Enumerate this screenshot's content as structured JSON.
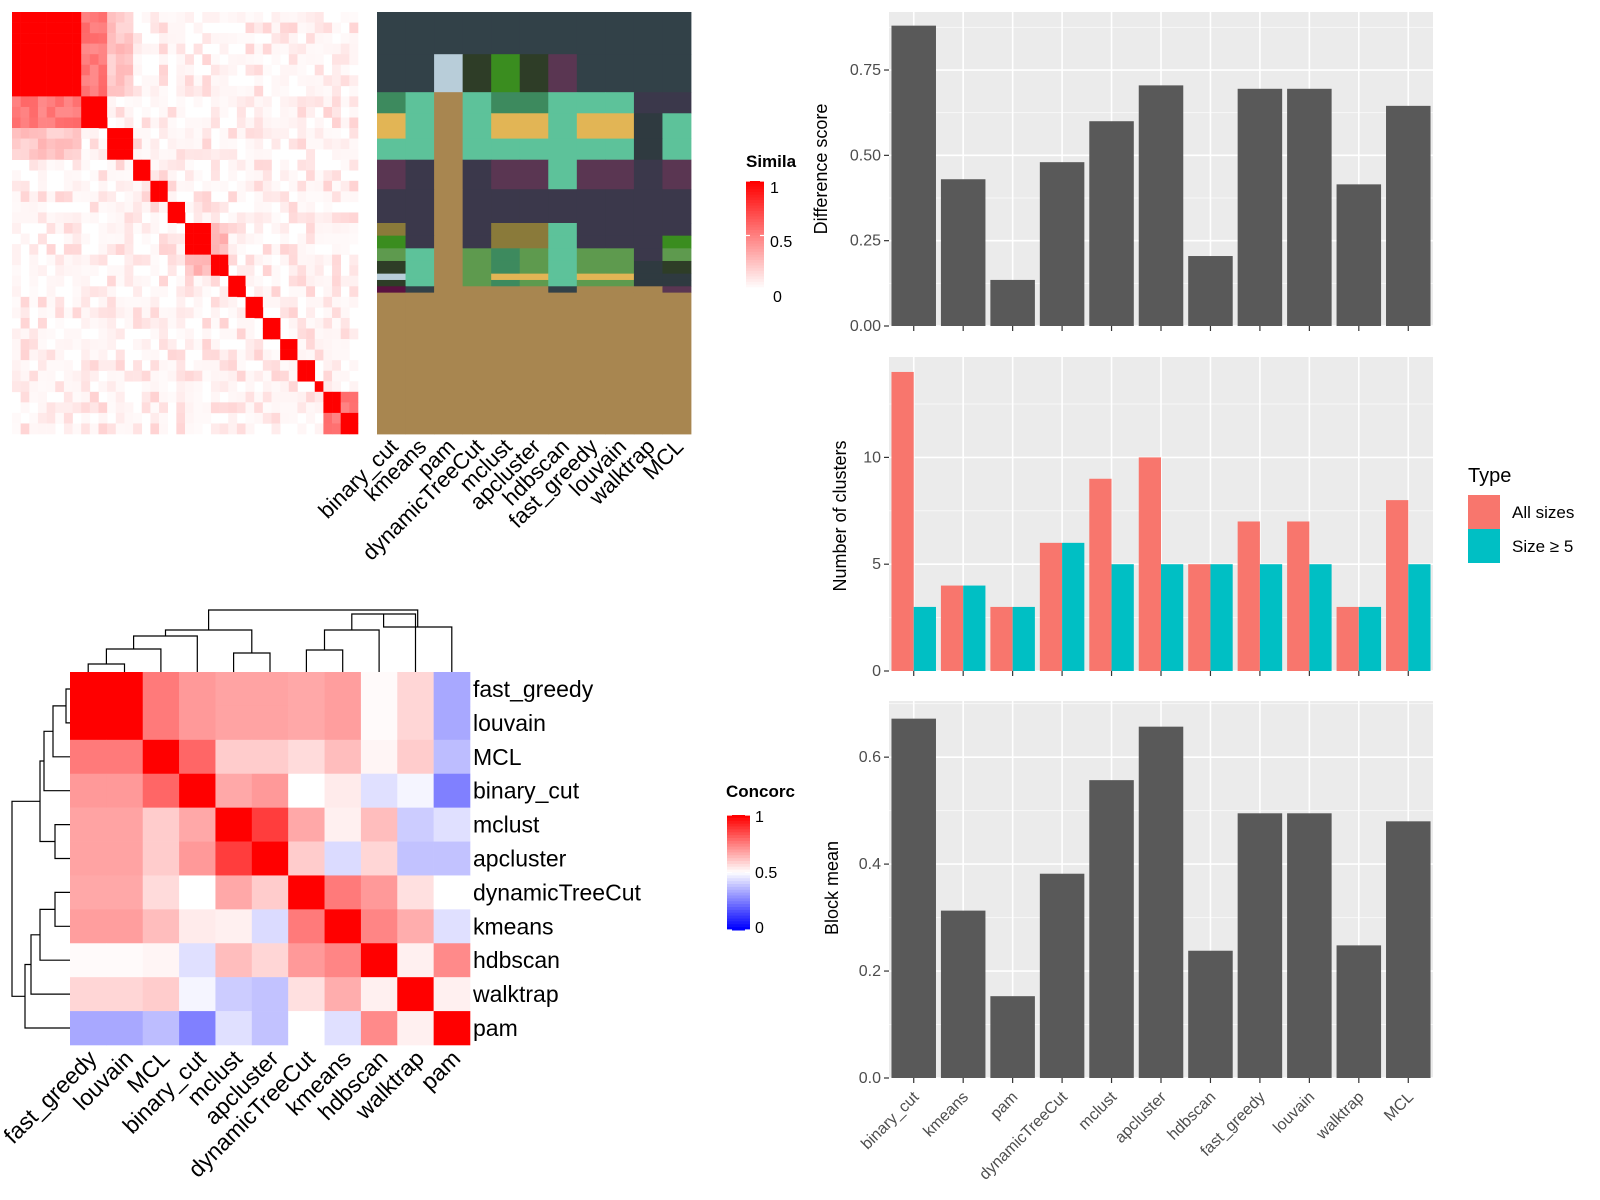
{
  "chart_data": [
    {
      "type": "heatmap",
      "panel": "similarity-heatmap",
      "legend_title": "Simila",
      "legend_ticks": [
        "1",
        "0.5",
        "0"
      ],
      "color_scale": {
        "low": "#ffffff",
        "high": "#ff0000",
        "range": [
          0,
          1
        ]
      },
      "diag_blocks": [
        8,
        3,
        3,
        2,
        2,
        2,
        3,
        2,
        2,
        2,
        2,
        2,
        2,
        1,
        2,
        2,
        2
      ],
      "block_links": [
        [
          0,
          1,
          0.45
        ],
        [
          0,
          2,
          0.15
        ],
        [
          6,
          7,
          0.2
        ],
        [
          14,
          15,
          0.45
        ],
        [
          15,
          16,
          0.4
        ]
      ]
    },
    {
      "type": "heatmap",
      "panel": "cluster-assignment-heatmap",
      "categories": [
        "binary_cut",
        "kmeans",
        "pam",
        "dynamicTreeCut",
        "mclust",
        "apcluster",
        "hdbscan",
        "fast_greedy",
        "louvain",
        "walktrap",
        "MCL"
      ],
      "background_color": "#324148",
      "rows": [
        {
          "h": 10,
          "cells": [
            "#324148",
            "#324148",
            "#324148",
            "#324148",
            "#324148",
            "#324148",
            "#324148",
            "#324148",
            "#324148",
            "#324148",
            "#324148"
          ]
        },
        {
          "h": 9,
          "cells": [
            "#324148",
            "#324148",
            "#b8cdd9",
            "#2e3d27",
            "#3a8d1f",
            "#2e3d27",
            "#5a3652",
            "#324148",
            "#324148",
            "#324148",
            "#324148"
          ]
        },
        {
          "h": 5,
          "cells": [
            "#3d8a5e",
            "#5dc29a",
            "#a88650",
            "#5dc29a",
            "#3d8a5e",
            "#3d8a5e",
            "#5dc29a",
            "#5dc29a",
            "#5dc29a",
            "#3b384b",
            "#3b384b"
          ]
        },
        {
          "h": 6,
          "cells": [
            "#e2b555",
            "#5dc29a",
            "#a88650",
            "#5dc29a",
            "#e2b555",
            "#e2b555",
            "#5dc29a",
            "#e2b555",
            "#e2b555",
            "#2f3a40",
            "#5dc29a"
          ]
        },
        {
          "h": 5,
          "cells": [
            "#5dc29a",
            "#5dc29a",
            "#a88650",
            "#5dc29a",
            "#5dc29a",
            "#5dc29a",
            "#5dc29a",
            "#5dc29a",
            "#5dc29a",
            "#2f3a40",
            "#5dc29a"
          ]
        },
        {
          "h": 7,
          "cells": [
            "#5a3652",
            "#3b384b",
            "#a88650",
            "#3b384b",
            "#5a3652",
            "#5a3652",
            "#5dc29a",
            "#5a3652",
            "#5a3652",
            "#3b384b",
            "#5a3652"
          ]
        },
        {
          "h": 8,
          "cells": [
            "#3b384b",
            "#3b384b",
            "#a88650",
            "#3b384b",
            "#3b384b",
            "#3b384b",
            "#3b384b",
            "#3b384b",
            "#3b384b",
            "#3b384b",
            "#3b384b"
          ]
        },
        {
          "h": 3,
          "cells": [
            "#8a7a3a",
            "#3b384b",
            "#a88650",
            "#3b384b",
            "#8a7a3a",
            "#8a7a3a",
            "#5dc29a",
            "#3b384b",
            "#3b384b",
            "#3b384b",
            "#3b384b"
          ]
        },
        {
          "h": 3,
          "cells": [
            "#3a8d1f",
            "#3b384b",
            "#a88650",
            "#3b384b",
            "#8a7a3a",
            "#8a7a3a",
            "#5dc29a",
            "#3b384b",
            "#3b384b",
            "#3b384b",
            "#3a8d1f"
          ]
        },
        {
          "h": 3,
          "cells": [
            "#5e9a4e",
            "#5dc29a",
            "#a88650",
            "#5e9a4e",
            "#3d8a5e",
            "#5e9a4e",
            "#5dc29a",
            "#5e9a4e",
            "#5e9a4e",
            "#3b384b",
            "#5e9a4e"
          ]
        },
        {
          "h": 3,
          "cells": [
            "#2e3d27",
            "#5dc29a",
            "#a88650",
            "#5e9a4e",
            "#3d8a5e",
            "#5e9a4e",
            "#5dc29a",
            "#5e9a4e",
            "#5e9a4e",
            "#2f3a40",
            "#2e3d27"
          ]
        },
        {
          "h": 1.5,
          "cells": [
            "#b8cdd9",
            "#5dc29a",
            "#a88650",
            "#5e9a4e",
            "#e2b555",
            "#e2b555",
            "#5dc29a",
            "#e2b555",
            "#e2b555",
            "#2f3a40",
            "#2f3a40"
          ]
        },
        {
          "h": 1.5,
          "cells": [
            "#2e3d27",
            "#5dc29a",
            "#a88650",
            "#5e9a4e",
            "#3d8a5e",
            "#5e9a4e",
            "#5dc29a",
            "#5e9a4e",
            "#5e9a4e",
            "#2f3a40",
            "#2f3a40"
          ]
        },
        {
          "h": 1.5,
          "cells": [
            "#5a1240",
            "#324148",
            "#a88650",
            "#a88650",
            "#a88650",
            "#a88650",
            "#324148",
            "#a88650",
            "#a88650",
            "#a88650",
            "#5a3652"
          ]
        },
        {
          "h": 33.5,
          "cells": [
            "#a88650",
            "#a88650",
            "#a88650",
            "#a88650",
            "#a88650",
            "#a88650",
            "#a88650",
            "#a88650",
            "#a88650",
            "#a88650",
            "#a88650"
          ]
        }
      ]
    },
    {
      "type": "heatmap",
      "panel": "concordance-heatmap",
      "legend_title": "Concorc",
      "legend_ticks": [
        "1",
        "0.5",
        "0"
      ],
      "color_scale": {
        "low": "#0000ff",
        "mid": "#ffffff",
        "high": "#ff0000",
        "range": [
          0,
          1
        ]
      },
      "rows": [
        "fast_greedy",
        "louvain",
        "MCL",
        "binary_cut",
        "mclust",
        "apcluster",
        "dynamicTreeCut",
        "kmeans",
        "hdbscan",
        "walktrap",
        "pam"
      ],
      "columns": [
        "fast_greedy",
        "louvain",
        "MCL",
        "binary_cut",
        "mclust",
        "apcluster",
        "dynamicTreeCut",
        "kmeans",
        "hdbscan",
        "walktrap",
        "pam"
      ],
      "values": [
        [
          1.0,
          1.0,
          0.76,
          0.7,
          0.68,
          0.68,
          0.67,
          0.69,
          0.51,
          0.58,
          0.33
        ],
        [
          1.0,
          1.0,
          0.76,
          0.7,
          0.68,
          0.68,
          0.67,
          0.69,
          0.51,
          0.58,
          0.33
        ],
        [
          0.76,
          0.76,
          1.0,
          0.8,
          0.6,
          0.6,
          0.57,
          0.63,
          0.52,
          0.6,
          0.37
        ],
        [
          0.7,
          0.7,
          0.8,
          1.0,
          0.67,
          0.7,
          0.5,
          0.54,
          0.44,
          0.48,
          0.25
        ],
        [
          0.68,
          0.68,
          0.6,
          0.67,
          1.0,
          0.88,
          0.67,
          0.53,
          0.63,
          0.4,
          0.44
        ],
        [
          0.68,
          0.68,
          0.6,
          0.7,
          0.88,
          1.0,
          0.6,
          0.43,
          0.58,
          0.38,
          0.38
        ],
        [
          0.67,
          0.67,
          0.57,
          0.5,
          0.67,
          0.6,
          1.0,
          0.76,
          0.7,
          0.56,
          0.5
        ],
        [
          0.69,
          0.69,
          0.63,
          0.54,
          0.53,
          0.43,
          0.76,
          1.0,
          0.74,
          0.66,
          0.44
        ],
        [
          0.51,
          0.51,
          0.52,
          0.44,
          0.63,
          0.58,
          0.7,
          0.74,
          1.0,
          0.53,
          0.73
        ],
        [
          0.58,
          0.58,
          0.6,
          0.48,
          0.4,
          0.38,
          0.56,
          0.66,
          0.53,
          1.0,
          0.53
        ],
        [
          0.33,
          0.33,
          0.37,
          0.25,
          0.44,
          0.38,
          0.5,
          0.44,
          0.73,
          0.53,
          1.0
        ]
      ],
      "dendrogram": "hierarchical clustering on rows and columns"
    },
    {
      "type": "bar",
      "panel": "difference-score",
      "categories": [
        "binary_cut",
        "kmeans",
        "pam",
        "dynamicTreeCut",
        "mclust",
        "apcluster",
        "hdbscan",
        "fast_greedy",
        "louvain",
        "walktrap",
        "MCL"
      ],
      "values": [
        0.88,
        0.43,
        0.135,
        0.48,
        0.6,
        0.705,
        0.205,
        0.695,
        0.695,
        0.415,
        0.645
      ],
      "ylabel": "Difference score",
      "yticks": [
        "0.00",
        "0.25",
        "0.50",
        "0.75"
      ],
      "ylim": [
        0,
        0.92
      ],
      "bar_color": "#595959",
      "grid": true
    },
    {
      "type": "bar",
      "panel": "number-of-clusters",
      "categories": [
        "binary_cut",
        "kmeans",
        "pam",
        "dynamicTreeCut",
        "mclust",
        "apcluster",
        "hdbscan",
        "fast_greedy",
        "louvain",
        "walktrap",
        "MCL"
      ],
      "series": [
        {
          "name": "All sizes",
          "values": [
            14,
            4,
            3,
            6,
            9,
            10,
            5,
            7,
            7,
            3,
            8
          ],
          "color": "#f8766d"
        },
        {
          "name": "Size ≥ 5",
          "values": [
            3,
            4,
            3,
            6,
            5,
            5,
            5,
            5,
            5,
            3,
            5
          ],
          "color": "#00bfc4"
        }
      ],
      "ylabel": "Number of clusters",
      "yticks": [
        "0",
        "5",
        "10"
      ],
      "ylim": [
        0,
        14.7
      ],
      "legend_title": "Type",
      "legend_position": "right",
      "grid": true
    },
    {
      "type": "bar",
      "panel": "block-mean",
      "categories": [
        "binary_cut",
        "kmeans",
        "pam",
        "dynamicTreeCut",
        "mclust",
        "apcluster",
        "hdbscan",
        "fast_greedy",
        "louvain",
        "walktrap",
        "MCL"
      ],
      "values": [
        0.672,
        0.313,
        0.153,
        0.382,
        0.557,
        0.657,
        0.238,
        0.495,
        0.495,
        0.248,
        0.48
      ],
      "ylabel": "Block mean",
      "yticks": [
        "0.0",
        "0.2",
        "0.4",
        "0.6"
      ],
      "ylim": [
        0,
        0.705
      ],
      "bar_color": "#595959",
      "grid": true
    }
  ]
}
